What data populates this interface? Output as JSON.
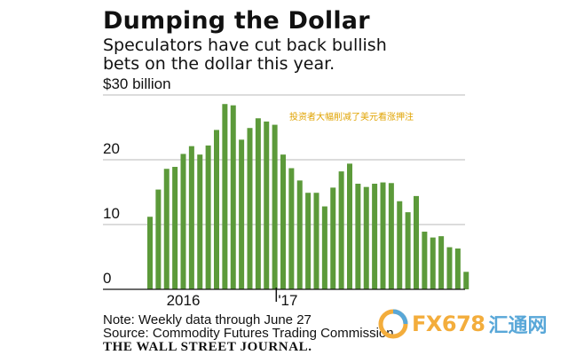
{
  "header": {
    "title": "Dumping the Dollar",
    "subtitle_line1": "Speculators have cut back bullish",
    "subtitle_line2": "bets on the dollar this year."
  },
  "chart_data": {
    "type": "bar",
    "unit_label": "$30 billion",
    "ylim": [
      0,
      30
    ],
    "yticks": [
      {
        "value": 30,
        "label": "$30 billion"
      },
      {
        "value": 20,
        "label": "20"
      },
      {
        "value": 10,
        "label": "10"
      },
      {
        "value": 0,
        "label": "0"
      }
    ],
    "xtick_labels": [
      {
        "label": "2016",
        "index": 4
      },
      {
        "label": "'17",
        "index": 15.5
      }
    ],
    "grid": true,
    "bar_color": "#5c9a3a",
    "values": [
      11.2,
      15.4,
      18.6,
      18.9,
      20.9,
      22.1,
      20.8,
      22.2,
      24.6,
      28.6,
      28.4,
      23.1,
      24.9,
      26.4,
      25.9,
      25.4,
      20.8,
      18.7,
      16.8,
      14.9,
      14.9,
      12.8,
      15.7,
      18.2,
      19.4,
      16.3,
      15.8,
      16.3,
      16.5,
      16.4,
      13.6,
      11.9,
      14.4,
      8.9,
      8.0,
      8.2,
      6.5,
      6.3,
      2.7
    ],
    "annotation": "投资者大幅削减了美元看涨押注"
  },
  "footnotes": {
    "note": "Note: Weekly data through June 27",
    "source": "Source: Commodity Futures Trading Commission"
  },
  "publisher": "THE WALL STREET JOURNAL.",
  "watermark": {
    "text": "FX678",
    "text_cn": "汇通网",
    "color_brand": "#f3ad3c",
    "color_cn": "#58a7d8",
    "icon": "fx678-logo-icon"
  }
}
